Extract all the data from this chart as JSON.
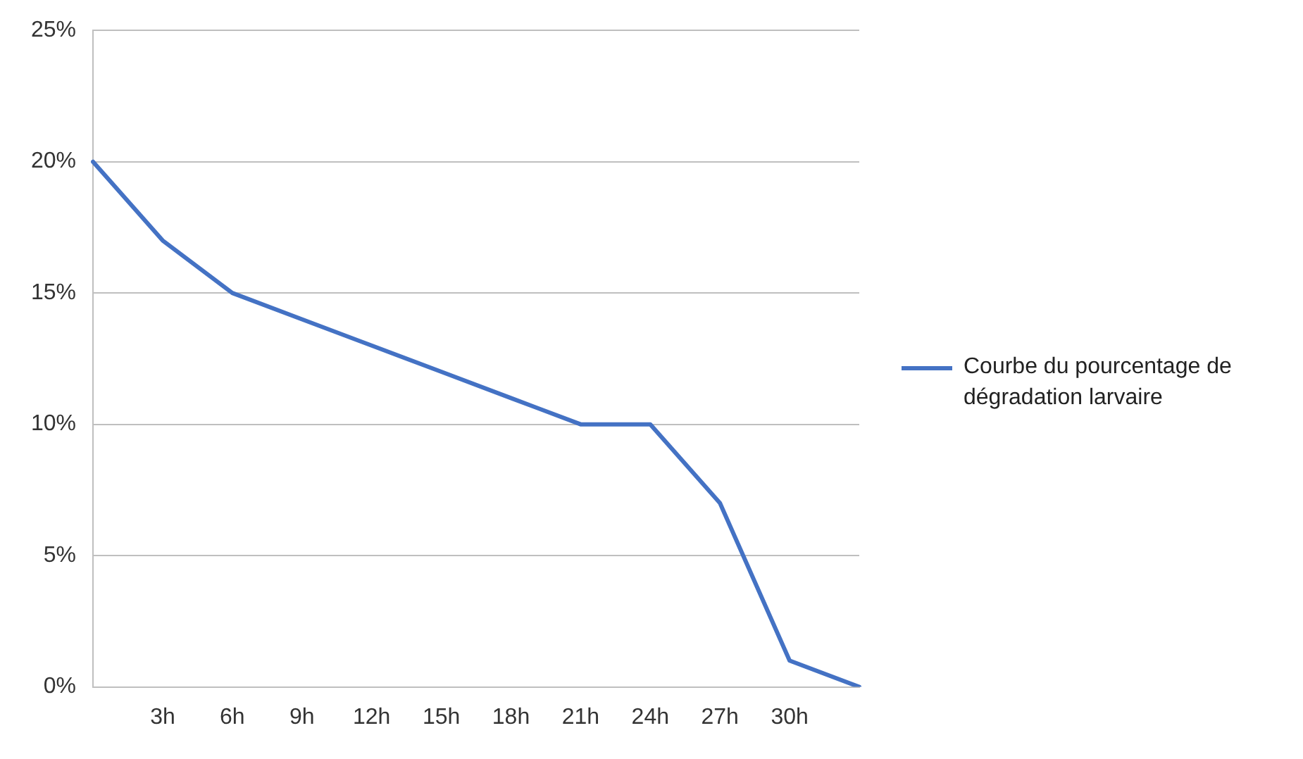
{
  "chart_data": {
    "type": "line",
    "categories": [
      null,
      "3h",
      "6h",
      "9h",
      "12h",
      "15h",
      "18h",
      "21h",
      "24h",
      "27h",
      "30h",
      null
    ],
    "series": [
      {
        "name": "Courbe du pourcentage de dégradation larvaire",
        "color": "#4472c4",
        "values": [
          20,
          17,
          15,
          14,
          13,
          12,
          11,
          10,
          10,
          7,
          1,
          0
        ]
      }
    ],
    "ylim": [
      0,
      25
    ],
    "yticks": [
      {
        "value": 0,
        "label": "0%"
      },
      {
        "value": 5,
        "label": "5%"
      },
      {
        "value": 10,
        "label": "10%"
      },
      {
        "value": 15,
        "label": "15%"
      },
      {
        "value": 20,
        "label": "20%"
      },
      {
        "value": 25,
        "label": "25%"
      }
    ],
    "grid": "y",
    "legend": "right",
    "marker": "none",
    "line_style": "solid"
  }
}
